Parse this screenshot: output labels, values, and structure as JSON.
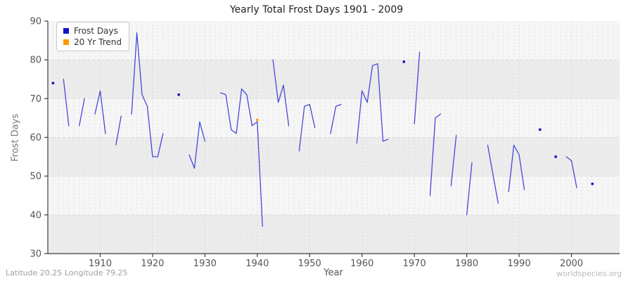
{
  "page": {
    "footer_left": "Latitude 20.25 Longitude 79.25",
    "footer_right": "worldspecies.org"
  },
  "chart_data": {
    "type": "line",
    "title": "Yearly Total Frost Days 1901 - 2009",
    "xlabel": "Year",
    "ylabel": "Frost Days",
    "xlim": [
      1900,
      2009.2
    ],
    "ylim": [
      30,
      90
    ],
    "x_ticks": [
      1910,
      1920,
      1930,
      1940,
      1950,
      1960,
      1970,
      1980,
      1990,
      2000
    ],
    "y_ticks": [
      30,
      40,
      50,
      60,
      70,
      80,
      90
    ],
    "grid": "dashed vertical minor gridlines per year, dashed horizontal gridlines per 10 units, alternating horizontal background bands",
    "legend_position": "upper-left",
    "band_color_dark": "#ececec",
    "band_color_light": "#f6f6f6",
    "series": [
      {
        "name": "Frost Days",
        "color": "#1414cc",
        "line_color": "#4747dc",
        "points": [
          [
            1901,
            74
          ],
          [
            1903,
            75
          ],
          [
            1904,
            63
          ],
          [
            1906,
            63
          ],
          [
            1907,
            70
          ],
          [
            1909,
            66
          ],
          [
            1910,
            72
          ],
          [
            1911,
            61
          ],
          [
            1913,
            58
          ],
          [
            1914,
            65.5
          ],
          [
            1916,
            66
          ],
          [
            1917,
            87
          ],
          [
            1918,
            71
          ],
          [
            1919,
            68
          ],
          [
            1920,
            55
          ],
          [
            1921,
            55
          ],
          [
            1922,
            61
          ],
          [
            1925,
            71
          ],
          [
            1927,
            55.5
          ],
          [
            1928,
            52
          ],
          [
            1929,
            64
          ],
          [
            1930,
            59
          ],
          [
            1933,
            71.5
          ],
          [
            1934,
            71
          ],
          [
            1935,
            62
          ],
          [
            1936,
            61
          ],
          [
            1937,
            72.5
          ],
          [
            1938,
            71
          ],
          [
            1939,
            63
          ],
          [
            1940,
            64
          ],
          [
            1941,
            37
          ],
          [
            1943,
            80
          ],
          [
            1944,
            69
          ],
          [
            1945,
            73.5
          ],
          [
            1946,
            63
          ],
          [
            1948,
            56.5
          ],
          [
            1949,
            68
          ],
          [
            1950,
            68.5
          ],
          [
            1951,
            62.5
          ],
          [
            1954,
            61
          ],
          [
            1955,
            68
          ],
          [
            1956,
            68.5
          ],
          [
            1959,
            58.5
          ],
          [
            1960,
            72
          ],
          [
            1961,
            69
          ],
          [
            1962,
            78.5
          ],
          [
            1963,
            79
          ],
          [
            1964,
            59
          ],
          [
            1965,
            59.5
          ],
          [
            1968,
            79.5
          ],
          [
            1970,
            63.5
          ],
          [
            1971,
            82
          ],
          [
            1973,
            45
          ],
          [
            1974,
            65
          ],
          [
            1975,
            66
          ],
          [
            1977,
            47.5
          ],
          [
            1978,
            60.5
          ],
          [
            1980,
            40
          ],
          [
            1981,
            53.5
          ],
          [
            1984,
            58
          ],
          [
            1985,
            50.5
          ],
          [
            1986,
            43
          ],
          [
            1988,
            46
          ],
          [
            1989,
            58
          ],
          [
            1990,
            55.5
          ],
          [
            1991,
            46.5
          ],
          [
            1994,
            62
          ],
          [
            1997,
            55
          ],
          [
            1999,
            55
          ],
          [
            2000,
            54
          ],
          [
            2001,
            47
          ],
          [
            2004,
            48
          ]
        ]
      },
      {
        "name": "20 Yr Trend",
        "color": "#ff9900",
        "line_color": "#ff9900",
        "points": [
          [
            1940,
            64.5
          ]
        ]
      }
    ]
  }
}
